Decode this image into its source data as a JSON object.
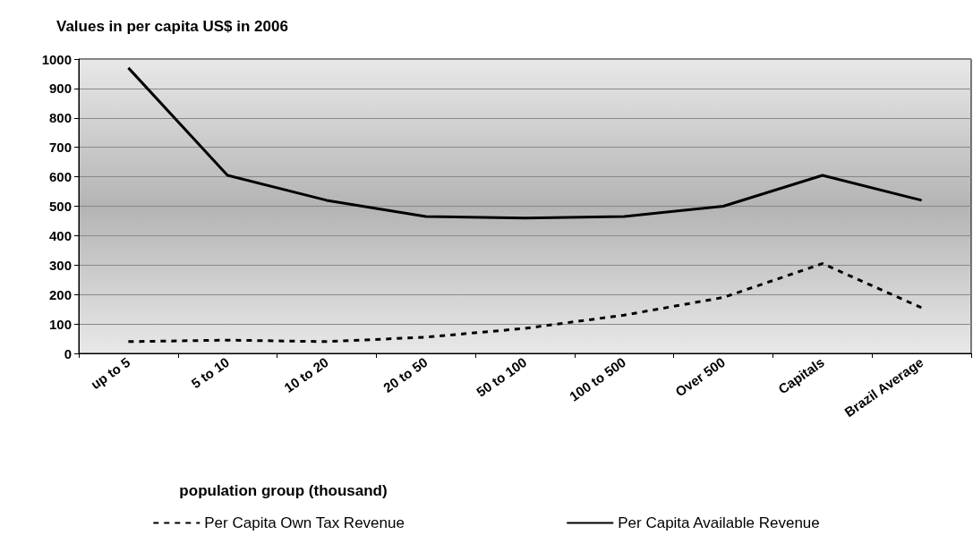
{
  "chart_data": {
    "type": "line",
    "ylabel": "Values in per capita US$ in 2006",
    "xlabel": "population group (thousand)",
    "categories": [
      "up to 5",
      "5 to 10",
      "10 to 20",
      "20 to 50",
      "50 to 100",
      "100 to 500",
      "Over 500",
      "Capitals",
      "Brazil Average"
    ],
    "series": [
      {
        "name": "Per Capita Own Tax Revenue",
        "color": "#000000",
        "line_style": "dashed",
        "values": [
          40,
          45,
          40,
          55,
          85,
          130,
          190,
          305,
          155
        ]
      },
      {
        "name": "Per Capita Available Revenue",
        "color": "#000000",
        "line_style": "solid",
        "values": [
          970,
          605,
          520,
          465,
          460,
          465,
          500,
          605,
          520
        ]
      }
    ],
    "ylim": [
      0,
      1000
    ],
    "yticks": [
      0,
      100,
      200,
      300,
      400,
      500,
      600,
      700,
      800,
      900,
      1000
    ],
    "grid": "y",
    "legend": "bottom",
    "marker": "none"
  }
}
